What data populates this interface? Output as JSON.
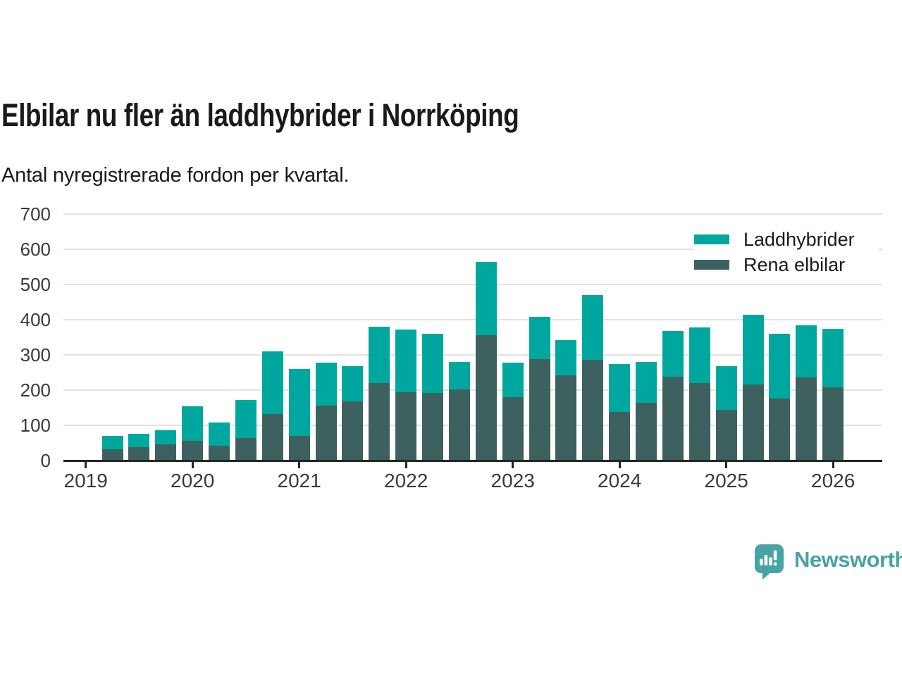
{
  "header": {
    "title": "Elbilar nu fler än laddhybrider i Norrköping",
    "subtitle": "Antal nyregistrerade fordon per kvartal."
  },
  "colors": {
    "laddhybrider": "#00A79E",
    "rena_elbilar": "#3D615F",
    "grid": "#E2E2E2",
    "axis": "#252525",
    "text": "#1A1A1A",
    "tick_label": "#3A3A3A",
    "brand": "#48A3A3"
  },
  "legend": {
    "items": [
      {
        "label": "Laddhybrider",
        "color": "#00A79E"
      },
      {
        "label": "Rena elbilar",
        "color": "#3D615F"
      }
    ]
  },
  "chart_data": {
    "type": "bar",
    "stacked": true,
    "title": "Elbilar nu fler än laddhybrider i Norrköping",
    "subtitle": "Antal nyregistrerade fordon per kvartal.",
    "x": [
      "2019-K2",
      "2019-K3",
      "2019-K4",
      "2020-K1",
      "2020-K2",
      "2020-K3",
      "2020-K4",
      "2021-K1",
      "2021-K2",
      "2021-K3",
      "2021-K4",
      "2022-K1",
      "2022-K2",
      "2022-K3",
      "2022-K4",
      "2023-K1",
      "2023-K2",
      "2023-K3",
      "2023-K4",
      "2024-K1",
      "2024-K2",
      "2024-K3",
      "2024-K4",
      "2025-K1",
      "2025-K2",
      "2025-K3",
      "2025-K4",
      "2026-K1"
    ],
    "series": [
      {
        "name": "Laddhybrider",
        "color": "#00A79E",
        "stack_position": "top",
        "values": [
          38,
          38,
          41,
          99,
          66,
          108,
          178,
          189,
          121,
          100,
          161,
          178,
          168,
          79,
          209,
          98,
          121,
          101,
          184,
          136,
          115,
          131,
          159,
          123,
          198,
          185,
          149,
          166
        ]
      },
      {
        "name": "Rena elbilar",
        "color": "#3D615F",
        "stack_position": "bottom",
        "values": [
          30,
          36,
          43,
          53,
          40,
          61,
          129,
          68,
          154,
          165,
          217,
          191,
          189,
          199,
          353,
          178,
          285,
          239,
          284,
          135,
          162,
          235,
          217,
          142,
          214,
          173,
          233,
          206
        ]
      }
    ],
    "ylim": [
      0,
      700
    ],
    "yticks": [
      0,
      100,
      200,
      300,
      400,
      500,
      600,
      700
    ],
    "xticks": [
      "2019",
      "2020",
      "2021",
      "2022",
      "2023",
      "2024",
      "2025",
      "2026"
    ],
    "grid": true,
    "legend_position": "top-right"
  },
  "footer": {
    "brand": "Newsworthy"
  }
}
